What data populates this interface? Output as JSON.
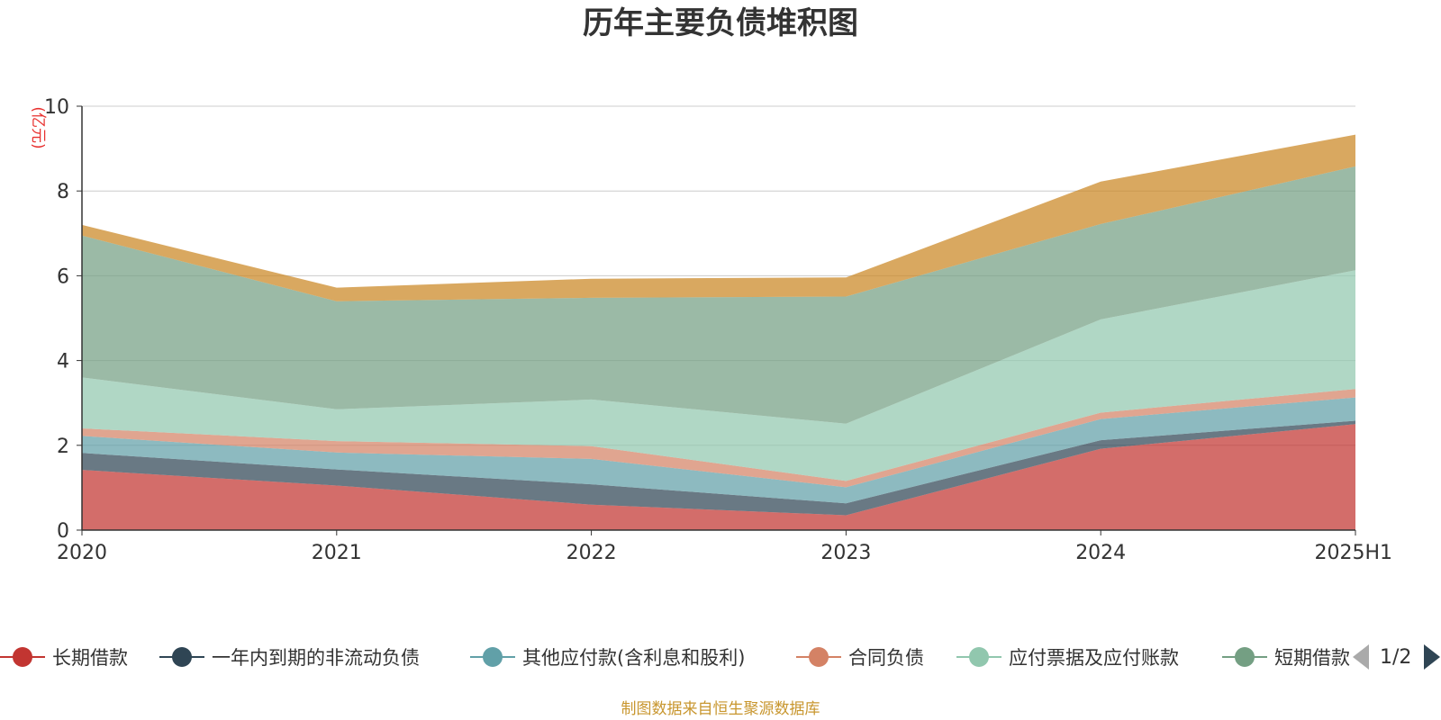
{
  "chart_data": {
    "type": "area",
    "title": "历年主要负债堆积图",
    "ylabel": "(亿元)",
    "xlabel": "",
    "stacked": true,
    "categories": [
      "2020",
      "2021",
      "2022",
      "2023",
      "2024",
      "2025H1"
    ],
    "ylim": [
      0,
      10
    ],
    "yticks": [
      "0",
      "2",
      "4",
      "6",
      "8",
      "10"
    ],
    "grid": true,
    "series": [
      {
        "name": "长期借款",
        "color": "#c23531",
        "values": [
          1.42,
          1.05,
          0.6,
          0.35,
          1.92,
          2.5
        ]
      },
      {
        "name": "一年内到期的非流动负债",
        "color": "#2f4554",
        "values": [
          0.4,
          0.38,
          0.48,
          0.28,
          0.2,
          0.08
        ]
      },
      {
        "name": "其他应付款(含利息和股利)",
        "color": "#61a0a8",
        "values": [
          0.4,
          0.4,
          0.6,
          0.38,
          0.5,
          0.55
        ]
      },
      {
        "name": "合同负债",
        "color": "#d48265",
        "values": [
          0.18,
          0.27,
          0.3,
          0.15,
          0.15,
          0.2
        ]
      },
      {
        "name": "应付票据及应付账款",
        "color": "#91c7ae",
        "values": [
          1.2,
          0.75,
          1.1,
          1.35,
          2.2,
          2.8
        ]
      },
      {
        "name": "短期借款",
        "color": "#749f83",
        "values": [
          3.35,
          2.55,
          2.4,
          3.0,
          2.25,
          2.45
        ]
      },
      {
        "name": "",
        "color": "#ca8622",
        "values": [
          0.25,
          0.32,
          0.45,
          0.45,
          1.0,
          0.75
        ]
      }
    ]
  },
  "legend": {
    "items": [
      {
        "label": "长期借款",
        "color": "#c23531"
      },
      {
        "label": "一年内到期的非流动负债",
        "color": "#2f4554"
      },
      {
        "label": "其他应付款(含利息和股利)",
        "color": "#61a0a8"
      },
      {
        "label": "合同负债",
        "color": "#d48265"
      },
      {
        "label": "应付票据及应付账款",
        "color": "#91c7ae"
      },
      {
        "label": "短期借款",
        "color": "#749f83"
      }
    ],
    "page_indicator": "1/2"
  },
  "source_note": "制图数据来自恒生聚源数据库"
}
